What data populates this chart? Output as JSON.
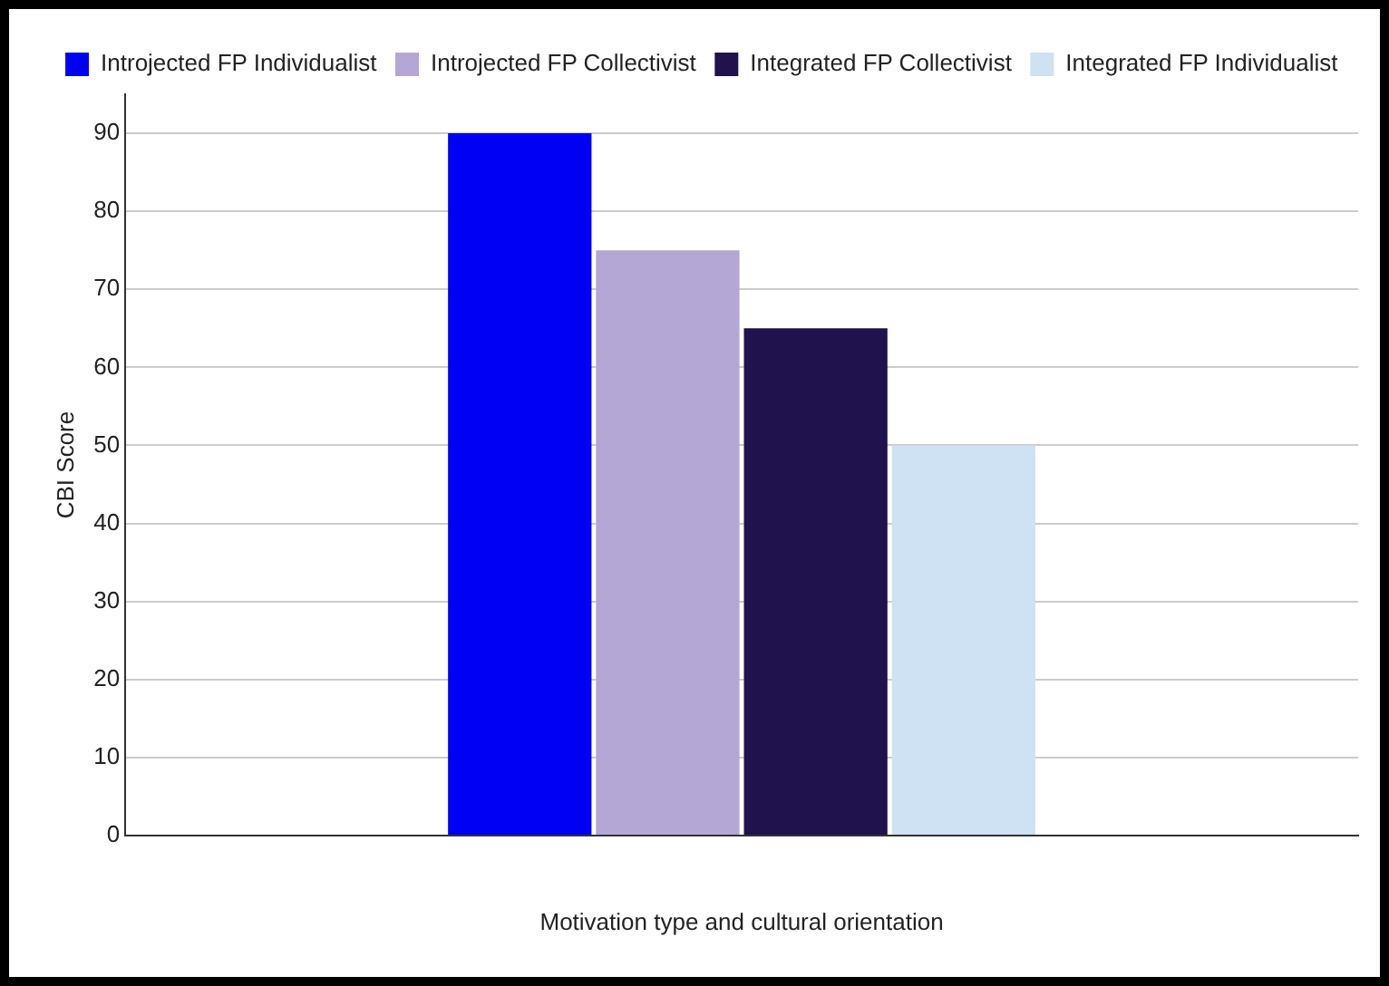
{
  "chart_data": {
    "type": "bar",
    "xlabel": "Motivation type and cultural orientation",
    "ylabel": "CBI Score",
    "categories": [
      null
    ],
    "series": [
      {
        "name": "Introjected FP Individualist",
        "color": "#0000f5",
        "values": [
          90
        ]
      },
      {
        "name": "Introjected FP Collectivist",
        "color": "#b4a7d6",
        "values": [
          75
        ]
      },
      {
        "name": "Integrated FP Collectivist",
        "color": "#20124d",
        "values": [
          65
        ]
      },
      {
        "name": "Integrated FP Individualist",
        "color": "#cfe2f3",
        "values": [
          50
        ]
      }
    ],
    "ylim": [
      0,
      95
    ],
    "yticks": [
      0,
      10,
      20,
      30,
      40,
      50,
      60,
      70,
      80,
      90
    ],
    "grid": "y",
    "legend": "top"
  }
}
